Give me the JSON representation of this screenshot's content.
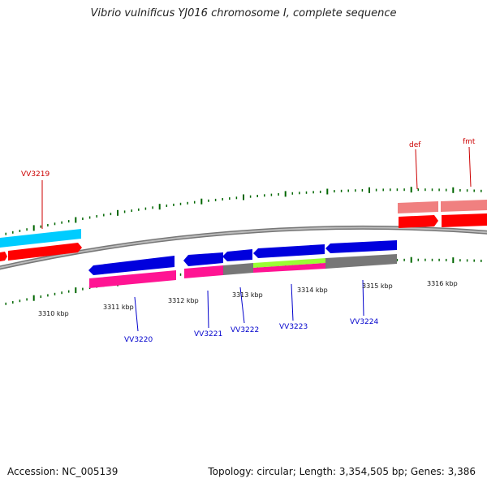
{
  "title": "Vibrio vulnificus YJ016 chromosome I, complete sequence",
  "footer": {
    "accession": "Accession: NC_005139",
    "summary": "Topology: circular; Length: 3,354,505 bp; Genes: 3,386"
  },
  "ticks": [
    "3310 kbp",
    "3311 kbp",
    "3312 kbp",
    "3313 kbp",
    "3314 kbp",
    "3315 kbp",
    "3316 kbp"
  ],
  "genes": {
    "top": [
      "VV3219",
      "def",
      "fmt"
    ],
    "bottom": [
      "VV3220",
      "VV3221",
      "VV3222",
      "VV3223",
      "VV3224"
    ]
  },
  "colors": {
    "forward_gene": "#ff0000",
    "forward_gene_light": "#f08080",
    "reverse_gene": "#0000dd",
    "cyan_band": "#00ccff",
    "magenta_band": "#ff1493",
    "green_band": "#99ff33",
    "gray_band": "#777777",
    "tick_green": "#006600",
    "backbone": "#888888"
  }
}
